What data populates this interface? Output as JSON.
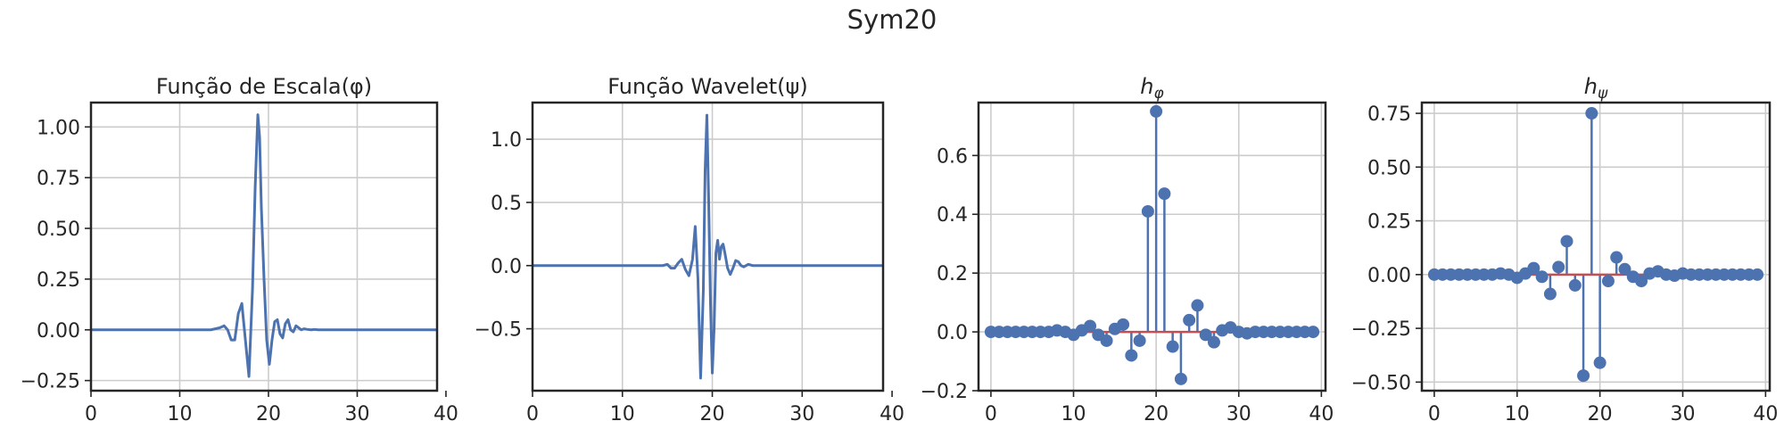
{
  "title": "Sym20",
  "colors": {
    "series": "#4c72b0",
    "baseline": "#c44e52",
    "grid": "#cccccc",
    "axes": "#262626"
  },
  "chart_data": [
    {
      "type": "line",
      "title": "Função de Escala(φ)",
      "xlim": [
        0,
        39
      ],
      "ylim": [
        -0.3,
        1.12
      ],
      "xticks": [
        0,
        10,
        20,
        30,
        40
      ],
      "yticks": [
        -0.25,
        0.0,
        0.25,
        0.5,
        0.75,
        1.0
      ],
      "ytick_labels": [
        "−0.25",
        "0.00",
        "0.25",
        "0.50",
        "0.75",
        "1.00"
      ],
      "grid": true,
      "series": [
        {
          "x": [
            0,
            13.5,
            14,
            14.5,
            15,
            15.4,
            15.8,
            16.2,
            16.6,
            17.0,
            17.4,
            17.8,
            18.2,
            18.5,
            18.8,
            19.0,
            19.2,
            19.5,
            19.8,
            20.1,
            20.4,
            20.7,
            21.0,
            21.3,
            21.6,
            21.9,
            22.2,
            22.5,
            22.8,
            23.1,
            23.4,
            23.7,
            24.0,
            24.4,
            24.8,
            25.2,
            25.6,
            26.0,
            27,
            39
          ],
          "y": [
            0,
            0,
            0.005,
            0.01,
            0.02,
            0.0,
            -0.05,
            -0.05,
            0.08,
            0.13,
            -0.05,
            -0.23,
            0.2,
            0.7,
            1.06,
            0.95,
            0.6,
            0.25,
            -0.05,
            -0.17,
            -0.05,
            0.04,
            0.05,
            -0.02,
            -0.04,
            0.03,
            0.05,
            0.0,
            -0.01,
            0.02,
            0.01,
            0.0,
            0.005,
            0.002,
            0.0,
            0.002,
            0.0,
            0.0,
            0.0,
            0.0
          ]
        }
      ]
    },
    {
      "type": "line",
      "title": "Função Wavelet(ψ)",
      "xlim": [
        0,
        39
      ],
      "ylim": [
        -0.99,
        1.29
      ],
      "xticks": [
        0,
        10,
        20,
        30,
        40
      ],
      "yticks": [
        -0.5,
        0.0,
        0.5,
        1.0
      ],
      "ytick_labels": [
        "−0.5",
        "0.0",
        "0.5",
        "1.0"
      ],
      "grid": true,
      "series": [
        {
          "x": [
            0,
            14.5,
            15.0,
            15.4,
            15.8,
            16.2,
            16.6,
            17.0,
            17.4,
            17.8,
            18.1,
            18.4,
            18.7,
            19.0,
            19.2,
            19.4,
            19.6,
            19.8,
            20.0,
            20.2,
            20.4,
            20.6,
            20.8,
            21.0,
            21.2,
            21.4,
            21.7,
            22.0,
            22.3,
            22.6,
            22.9,
            23.2,
            23.5,
            24.0,
            24.5,
            25.0,
            25.5,
            27,
            39
          ],
          "y": [
            0,
            0,
            0.01,
            -0.02,
            -0.02,
            0.02,
            0.05,
            -0.03,
            -0.08,
            0.05,
            0.31,
            -0.1,
            -0.89,
            -0.2,
            0.75,
            1.19,
            0.5,
            -0.3,
            -0.85,
            -0.5,
            0.1,
            0.2,
            0.05,
            0.15,
            0.17,
            0.1,
            -0.02,
            -0.07,
            -0.02,
            0.04,
            0.03,
            0.0,
            -0.01,
            0.01,
            0.0,
            0.0,
            0.0,
            0.0,
            0.0
          ]
        }
      ]
    },
    {
      "type": "stem",
      "title": "hφ",
      "title_main": "h",
      "title_sub": "φ",
      "xlim": [
        -1.5,
        40.5
      ],
      "ylim": [
        -0.2,
        0.78
      ],
      "xticks": [
        0,
        10,
        20,
        30,
        40
      ],
      "yticks": [
        -0.2,
        0.0,
        0.2,
        0.4,
        0.6
      ],
      "ytick_labels": [
        "−0.2",
        "0.0",
        "0.2",
        "0.4",
        "0.6"
      ],
      "grid": true,
      "x": [
        0,
        1,
        2,
        3,
        4,
        5,
        6,
        7,
        8,
        9,
        10,
        11,
        12,
        13,
        14,
        15,
        16,
        17,
        18,
        19,
        20,
        21,
        22,
        23,
        24,
        25,
        26,
        27,
        28,
        29,
        30,
        31,
        32,
        33,
        34,
        35,
        36,
        37,
        38,
        39
      ],
      "values": [
        0.0,
        0.0,
        0.0,
        0.0,
        0.0,
        0.0,
        0.0,
        0.0,
        0.005,
        0.0,
        -0.01,
        0.005,
        0.02,
        -0.01,
        -0.03,
        0.01,
        0.025,
        -0.08,
        -0.03,
        0.41,
        0.75,
        0.47,
        -0.05,
        -0.16,
        0.04,
        0.09,
        -0.01,
        -0.035,
        0.005,
        0.015,
        0.0,
        -0.005,
        0.0,
        0.0,
        0.0,
        0.0,
        0.0,
        0.0,
        0.0,
        0.0
      ]
    },
    {
      "type": "stem",
      "title": "hψ",
      "title_main": "h",
      "title_sub": "ψ",
      "xlim": [
        -1.5,
        40.5
      ],
      "ylim": [
        -0.54,
        0.8
      ],
      "xticks": [
        0,
        10,
        20,
        30,
        40
      ],
      "yticks": [
        -0.5,
        -0.25,
        0.0,
        0.25,
        0.5,
        0.75
      ],
      "ytick_labels": [
        "−0.50",
        "−0.25",
        "0.00",
        "0.25",
        "0.50",
        "0.75"
      ],
      "grid": true,
      "x": [
        0,
        1,
        2,
        3,
        4,
        5,
        6,
        7,
        8,
        9,
        10,
        11,
        12,
        13,
        14,
        15,
        16,
        17,
        18,
        19,
        20,
        21,
        22,
        23,
        24,
        25,
        26,
        27,
        28,
        29,
        30,
        31,
        32,
        33,
        34,
        35,
        36,
        37,
        38,
        39
      ],
      "values": [
        0.0,
        0.0,
        0.0,
        0.0,
        0.0,
        0.0,
        0.0,
        0.0,
        0.005,
        0.0,
        -0.015,
        0.005,
        0.03,
        -0.01,
        -0.09,
        0.035,
        0.155,
        -0.05,
        -0.47,
        0.75,
        -0.41,
        -0.03,
        0.08,
        0.025,
        -0.01,
        -0.03,
        0.005,
        0.015,
        0.0,
        -0.005,
        0.005,
        0.0,
        0.0,
        0.0,
        0.0,
        0.0,
        0.0,
        0.0,
        0.0,
        0.0
      ]
    }
  ]
}
